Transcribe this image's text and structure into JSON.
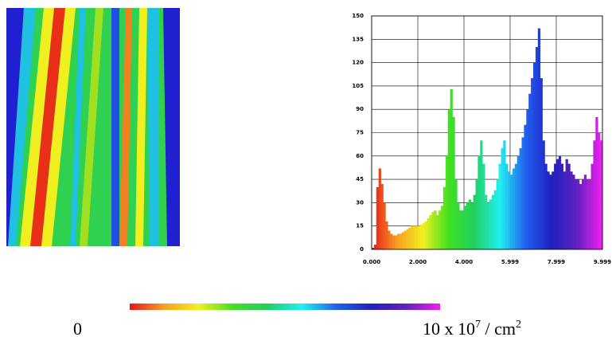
{
  "chart_data": {
    "type": "histogram",
    "bins": [
      0,
      0.1,
      0.2,
      0.3,
      0.4,
      0.5,
      0.6,
      0.7,
      0.8,
      0.9,
      1,
      1.1,
      1.2,
      1.3,
      1.4,
      1.5,
      1.6,
      1.7,
      1.8,
      1.9,
      2,
      2.1,
      2.2,
      2.3,
      2.4,
      2.5,
      2.6,
      2.7,
      2.8,
      2.9,
      3,
      3.1,
      3.2,
      3.3,
      3.4,
      3.5,
      3.6,
      3.7,
      3.8,
      3.9,
      4,
      4.1,
      4.2,
      4.3,
      4.4,
      4.5,
      4.6,
      4.7,
      4.8,
      4.9,
      5,
      5.1,
      5.2,
      5.3,
      5.4,
      5.5,
      5.6,
      5.7,
      5.8,
      5.9,
      6,
      6.1,
      6.2,
      6.3,
      6.4,
      6.5,
      6.6,
      6.7,
      6.8,
      6.9,
      7,
      7.1,
      7.2,
      7.3,
      7.4,
      7.5,
      7.6,
      7.7,
      7.8,
      7.9,
      8,
      8.1,
      8.2,
      8.3,
      8.4,
      8.5,
      8.6,
      8.7,
      8.8,
      8.9,
      9,
      9.1,
      9.2,
      9.3,
      9.4,
      9.5,
      9.6,
      9.7,
      9.8,
      9.9,
      10
    ],
    "values": [
      1,
      3,
      40,
      52,
      42,
      30,
      18,
      12,
      10,
      9,
      9,
      10,
      10,
      11,
      12,
      13,
      14,
      15,
      15,
      15,
      15,
      16,
      17,
      18,
      20,
      22,
      24,
      25,
      22,
      25,
      28,
      40,
      60,
      90,
      103,
      85,
      45,
      30,
      25,
      25,
      28,
      30,
      32,
      30,
      35,
      45,
      60,
      70,
      55,
      35,
      30,
      32,
      35,
      38,
      45,
      55,
      65,
      70,
      55,
      50,
      48,
      52,
      55,
      60,
      65,
      72,
      80,
      90,
      100,
      110,
      120,
      130,
      142,
      110,
      70,
      55,
      50,
      48,
      50,
      55,
      58,
      60,
      55,
      50,
      58,
      55,
      50,
      48,
      45,
      45,
      42,
      45,
      48,
      45,
      45,
      55,
      70,
      85,
      75,
      70
    ],
    "colormap": [
      "#e8141c",
      "#f8a020",
      "#f0f020",
      "#40e020",
      "#20d060",
      "#20f0f0",
      "#2060f0",
      "#2020c0",
      "#6020c0",
      "#f020f0"
    ],
    "xlim": [
      0,
      10
    ],
    "xticks": [
      {
        "value": 0,
        "label": "0.000"
      },
      {
        "value": 2,
        "label": "2.000"
      },
      {
        "value": 4,
        "label": "4.000"
      },
      5.999,
      7.999,
      9.999
    ],
    "ylim": [
      0,
      150
    ],
    "yticks": [
      0,
      15,
      30,
      45,
      60,
      75,
      90,
      105,
      120,
      135,
      150
    ],
    "grid": true
  },
  "colorbar": {
    "low_label": "0",
    "high_label": "10 x 10",
    "high_exp": "7",
    "unit": " / cm",
    "unit_exp": "2"
  }
}
